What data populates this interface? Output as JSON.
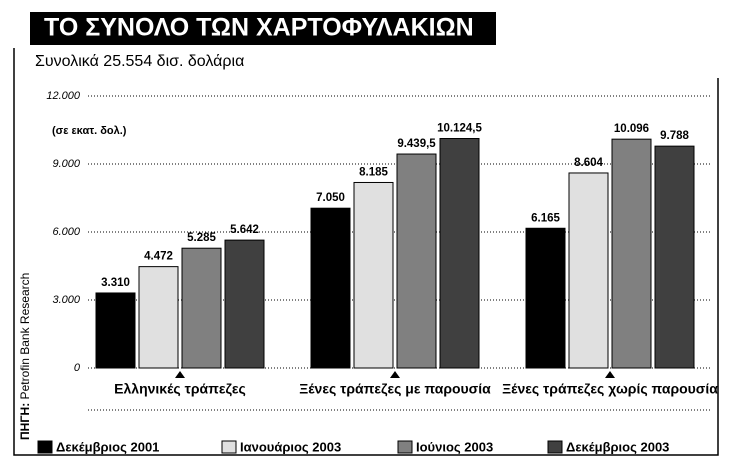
{
  "chart_data": {
    "type": "bar",
    "title": "ΤΟ ΣΥΝΟΛΟ ΤΩΝ ΧΑΡΤΟΦΥΛΑΚΙΩΝ",
    "subtitle": "Συνολικά 25.554 δισ. δολάρια",
    "unit_note": "(σε εκατ. δολ.)",
    "source_label": "ΠΗΓΗ:",
    "source": "Petrofin Bank Research",
    "categories": [
      "Ελληνικές τράπεζες",
      "Ξένες τράπεζες με παρουσία",
      "Ξένες τράπεζες χωρίς παρουσία"
    ],
    "series": [
      {
        "name": "Δεκέμβριος 2001",
        "color": "#000000",
        "values": [
          3310,
          7050,
          6165
        ],
        "value_labels": [
          "3.310",
          "7.050",
          "6.165"
        ]
      },
      {
        "name": "Ιανουάριος 2003",
        "color": "#e0e0e0",
        "values": [
          4472,
          8185,
          8604
        ],
        "value_labels": [
          "4.472",
          "8.185",
          "8.604"
        ]
      },
      {
        "name": "Ιούνιος 2003",
        "color": "#808080",
        "values": [
          5285,
          9439.5,
          10096
        ],
        "value_labels": [
          "5.285",
          "9.439,5",
          "10.096"
        ]
      },
      {
        "name": "Δεκέμβριος 2003",
        "color": "#404040",
        "values": [
          5642,
          10124.5,
          9788
        ],
        "value_labels": [
          "5.642",
          "10.124,5",
          "9.788"
        ]
      }
    ],
    "ylim": [
      0,
      12000
    ],
    "yticks": [
      0,
      {
        "value": 3000,
        "label": "3.000"
      },
      {
        "value": 6000,
        "label": "6.000"
      },
      {
        "value": 9000,
        "label": "9.000"
      },
      {
        "value": 12000,
        "label": "12.000"
      }
    ],
    "grid": true
  }
}
